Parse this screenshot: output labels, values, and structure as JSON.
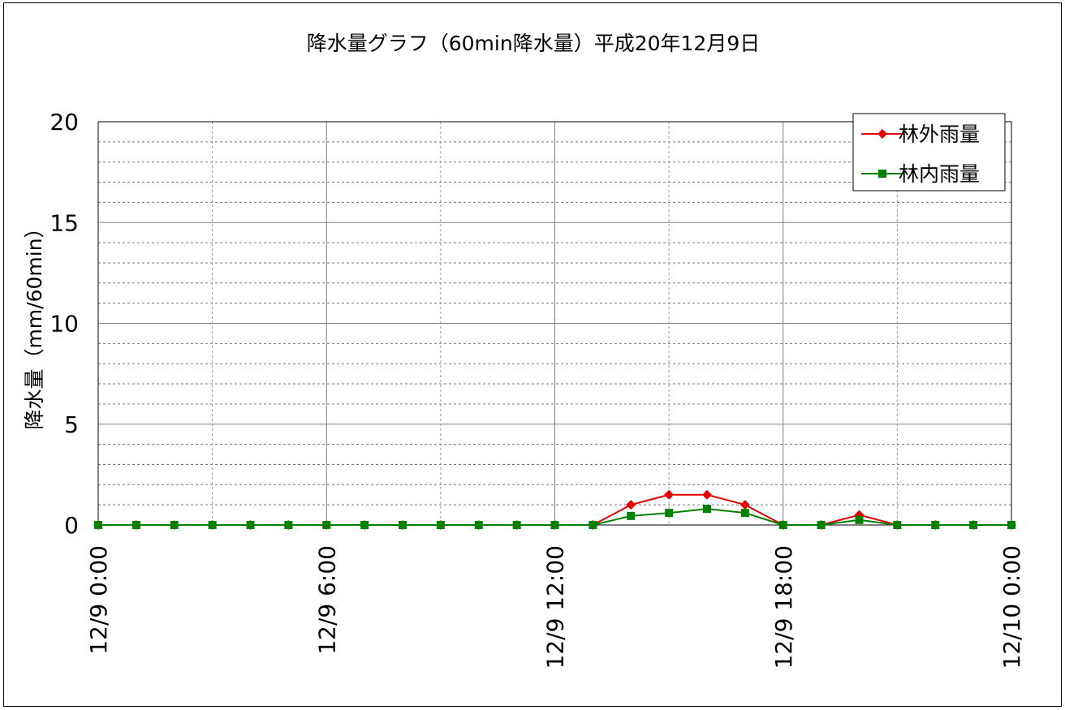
{
  "chart_data": {
    "type": "line",
    "title": "降水量グラフ（60min降水量）平成20年12月9日",
    "xlabel": "",
    "ylabel": "降水量（mm/60min）",
    "ylim": [
      0,
      20
    ],
    "y_major_ticks": [
      0,
      5,
      10,
      15,
      20
    ],
    "y_minor_step": 1,
    "x_hours_range": [
      0,
      24
    ],
    "x_tick_labels": [
      {
        "hour": 0,
        "label": "12/9 0:00"
      },
      {
        "hour": 6,
        "label": "12/9 6:00"
      },
      {
        "hour": 12,
        "label": "12/9 12:00"
      },
      {
        "hour": 18,
        "label": "12/9 18:00"
      },
      {
        "hour": 24,
        "label": "12/10 0:00"
      }
    ],
    "x_grid_hours": [
      0,
      3,
      6,
      9,
      12,
      15,
      18,
      21,
      24
    ],
    "grid": true,
    "legend_position": "top-right",
    "series": [
      {
        "name": "林外雨量",
        "color": "#e60000",
        "marker": "diamond",
        "x": [
          0,
          1,
          2,
          3,
          4,
          5,
          6,
          7,
          8,
          9,
          10,
          11,
          12,
          13,
          14,
          15,
          16,
          17,
          18,
          19,
          20,
          21,
          22,
          23,
          24
        ],
        "values": [
          0,
          0,
          0,
          0,
          0,
          0,
          0,
          0,
          0,
          0,
          0,
          0,
          0,
          0,
          1.0,
          1.5,
          1.5,
          1.0,
          0,
          0,
          0.5,
          0,
          0,
          0,
          0
        ]
      },
      {
        "name": "林内雨量",
        "color": "#008000",
        "marker": "square",
        "x": [
          0,
          1,
          2,
          3,
          4,
          5,
          6,
          7,
          8,
          9,
          10,
          11,
          12,
          13,
          14,
          15,
          16,
          17,
          18,
          19,
          20,
          21,
          22,
          23,
          24
        ],
        "values": [
          0,
          0,
          0,
          0,
          0,
          0,
          0,
          0,
          0,
          0,
          0,
          0,
          0,
          0,
          0.45,
          0.6,
          0.8,
          0.6,
          0,
          0,
          0.25,
          0,
          0,
          0,
          0
        ]
      }
    ]
  }
}
